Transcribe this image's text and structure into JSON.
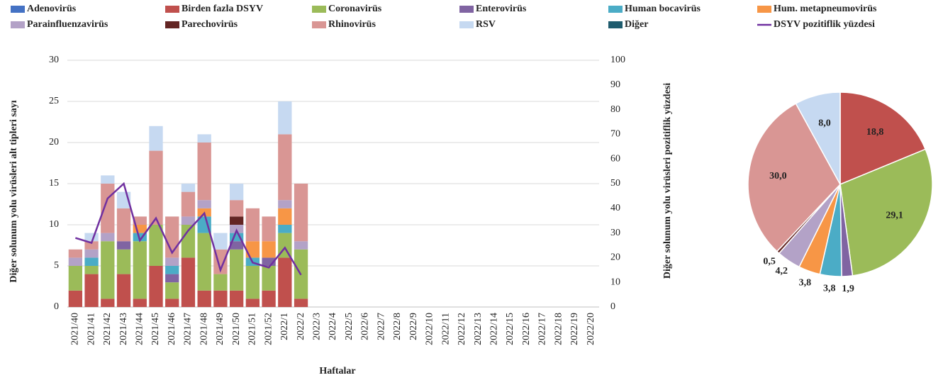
{
  "chart_data": [
    {
      "type": "combo",
      "categories": [
        "2021/40",
        "2021/41",
        "2021/42",
        "2021/43",
        "2021/44",
        "2021/45",
        "2021/46",
        "2021/47",
        "2021/48",
        "2021/49",
        "2021/50",
        "2021/51",
        "2021/52",
        "2022/1",
        "2022/2",
        "2022/3",
        "2022/4",
        "2022/5",
        "2022/6",
        "2022/7",
        "2022/8",
        "2022/9",
        "2022/10",
        "2022/11",
        "2022/12",
        "2022/13",
        "2022/14",
        "2022/15",
        "2022/16",
        "2022/17",
        "2022/18",
        "2022/19",
        "2022/20"
      ],
      "x_label": "Haftalar",
      "y_label": "Diğer solunum yolu virüsleri alt tipleri sayı",
      "y2_label": "Diğer solunum yolu virüsleri pozitiflik yüzdesi",
      "ylim": [
        0,
        30
      ],
      "yticks": [
        0,
        5,
        10,
        15,
        20,
        25,
        30
      ],
      "y2lim": [
        0,
        100
      ],
      "y2ticks": [
        0,
        10,
        20,
        30,
        40,
        50,
        60,
        70,
        80,
        90,
        100
      ],
      "series": [
        {
          "name": "Adenovirüs",
          "color": "#4472c4",
          "values": [
            0,
            0,
            0,
            0,
            0,
            0,
            0,
            0,
            0,
            0,
            0,
            0,
            0,
            0,
            0,
            null,
            null,
            null,
            null,
            null,
            null,
            null,
            null,
            null,
            null,
            null,
            null,
            null,
            null,
            null,
            null,
            null,
            null
          ]
        },
        {
          "name": "Birden fazla DSYV",
          "color": "#c0504d",
          "values": [
            2,
            4,
            1,
            4,
            1,
            5,
            1,
            6,
            2,
            2,
            2,
            1,
            2,
            6,
            1,
            null,
            null,
            null,
            null,
            null,
            null,
            null,
            null,
            null,
            null,
            null,
            null,
            null,
            null,
            null,
            null,
            null,
            null
          ]
        },
        {
          "name": "Coronavirüs",
          "color": "#9bbb59",
          "values": [
            3,
            1,
            7,
            3,
            7,
            5,
            2,
            4,
            7,
            2,
            5,
            4,
            3,
            3,
            6,
            null,
            null,
            null,
            null,
            null,
            null,
            null,
            null,
            null,
            null,
            null,
            null,
            null,
            null,
            null,
            null,
            null,
            null
          ]
        },
        {
          "name": "Enterovirüs",
          "color": "#8064a2",
          "values": [
            0,
            0,
            0,
            1,
            0,
            0,
            1,
            0,
            0,
            0,
            1,
            0,
            1,
            0,
            0,
            null,
            null,
            null,
            null,
            null,
            null,
            null,
            null,
            null,
            null,
            null,
            null,
            null,
            null,
            null,
            null,
            null,
            null
          ]
        },
        {
          "name": "Human bocavirüs",
          "color": "#4bacc6",
          "values": [
            0,
            1,
            0,
            0,
            1,
            0,
            1,
            0,
            2,
            0,
            1,
            1,
            0,
            1,
            0,
            null,
            null,
            null,
            null,
            null,
            null,
            null,
            null,
            null,
            null,
            null,
            null,
            null,
            null,
            null,
            null,
            null,
            null
          ]
        },
        {
          "name": "Hum. metapneumovirüs",
          "color": "#f79646",
          "values": [
            0,
            0,
            0,
            0,
            1,
            0,
            0,
            0,
            1,
            0,
            0,
            2,
            2,
            2,
            0,
            null,
            null,
            null,
            null,
            null,
            null,
            null,
            null,
            null,
            null,
            null,
            null,
            null,
            null,
            null,
            null,
            null,
            null
          ]
        },
        {
          "name": "Parainfluenzavirüs",
          "color": "#b3a2c7",
          "values": [
            1,
            1,
            1,
            0,
            0,
            0,
            1,
            1,
            1,
            0,
            1,
            0,
            0,
            1,
            1,
            null,
            null,
            null,
            null,
            null,
            null,
            null,
            null,
            null,
            null,
            null,
            null,
            null,
            null,
            null,
            null,
            null,
            null
          ]
        },
        {
          "name": "Parechovirüs",
          "color": "#632523",
          "values": [
            0,
            0,
            0,
            0,
            0,
            0,
            0,
            0,
            0,
            0,
            1,
            0,
            0,
            0,
            0,
            null,
            null,
            null,
            null,
            null,
            null,
            null,
            null,
            null,
            null,
            null,
            null,
            null,
            null,
            null,
            null,
            null,
            null
          ]
        },
        {
          "name": "Rhinovirüs",
          "color": "#d99694",
          "values": [
            1,
            1,
            6,
            4,
            1,
            9,
            5,
            3,
            7,
            3,
            2,
            4,
            3,
            8,
            7,
            null,
            null,
            null,
            null,
            null,
            null,
            null,
            null,
            null,
            null,
            null,
            null,
            null,
            null,
            null,
            null,
            null,
            null
          ]
        },
        {
          "name": "RSV",
          "color": "#c6d9f1",
          "values": [
            0,
            1,
            1,
            2,
            0,
            3,
            0,
            1,
            1,
            2,
            2,
            0,
            0,
            4,
            0,
            null,
            null,
            null,
            null,
            null,
            null,
            null,
            null,
            null,
            null,
            null,
            null,
            null,
            null,
            null,
            null,
            null,
            null
          ]
        },
        {
          "name": "Diğer",
          "color": "#1f5c6e",
          "values": [
            0,
            0,
            0,
            0,
            0,
            0,
            0,
            0,
            0,
            0,
            0,
            0,
            0,
            0,
            0,
            null,
            null,
            null,
            null,
            null,
            null,
            null,
            null,
            null,
            null,
            null,
            null,
            null,
            null,
            null,
            null,
            null,
            null
          ]
        },
        {
          "name": "DSYV pozitiflik yüzdesi",
          "color": "#7030a0",
          "type": "line",
          "axis": "y2",
          "values": [
            28,
            26,
            44,
            50,
            27,
            36,
            22,
            31,
            38,
            15,
            31,
            18,
            16,
            24,
            13,
            null,
            null,
            null,
            null,
            null,
            null,
            null,
            null,
            null,
            null,
            null,
            null,
            null,
            null,
            null,
            null,
            null,
            null
          ]
        }
      ]
    },
    {
      "type": "pie",
      "values": [
        18.8,
        29.1,
        1.9,
        3.8,
        3.8,
        4.2,
        0.5,
        30.0,
        8.0
      ],
      "value_labels": [
        "18,8",
        "29,1",
        "1,9",
        "3,8",
        "3,8",
        "4,2",
        "0,5",
        "30,0",
        "8,0"
      ],
      "colors": [
        "#c0504d",
        "#9bbb59",
        "#8064a2",
        "#4bacc6",
        "#f79646",
        "#b3a2c7",
        "#632523",
        "#d99694",
        "#c6d9f1"
      ]
    }
  ]
}
